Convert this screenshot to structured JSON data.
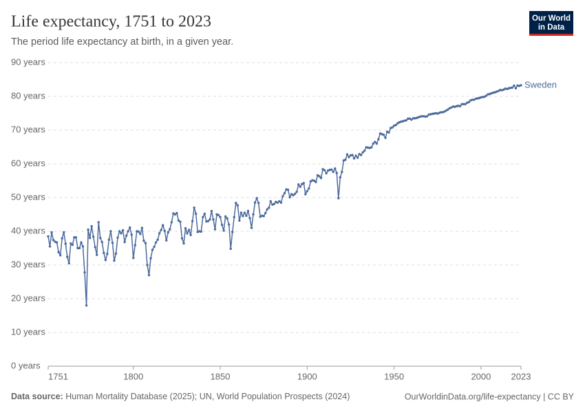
{
  "chart_data": {
    "type": "line",
    "title": "Life expectancy, 1751 to 2023",
    "subtitle": "The period life expectancy at birth, in a given year.",
    "logo": [
      "Our World",
      "in Data"
    ],
    "source_label": "Data source:",
    "source": "Human Mortality Database (2025); UN, World Population Prospects (2024)",
    "credit": "OurWorldinData.org/life-expectancy | CC BY",
    "xlim": [
      1751,
      2023
    ],
    "xticks": [
      1751,
      1800,
      1850,
      1900,
      1950,
      2000,
      2023
    ],
    "ylim": [
      0,
      90
    ],
    "yticks": [
      {
        "value": 0,
        "label": "0 years"
      },
      {
        "value": 10,
        "label": "10 years"
      },
      {
        "value": 20,
        "label": "20 years"
      },
      {
        "value": 30,
        "label": "30 years"
      },
      {
        "value": 40,
        "label": "40 years"
      },
      {
        "value": 50,
        "label": "50 years"
      },
      {
        "value": 60,
        "label": "60 years"
      },
      {
        "value": 70,
        "label": "70 years"
      },
      {
        "value": 80,
        "label": "80 years"
      },
      {
        "value": 90,
        "label": "90 years"
      }
    ],
    "grid": true,
    "x": [
      1751,
      1752,
      1753,
      1754,
      1755,
      1756,
      1757,
      1758,
      1759,
      1760,
      1761,
      1762,
      1763,
      1764,
      1765,
      1766,
      1767,
      1768,
      1769,
      1770,
      1771,
      1772,
      1773,
      1774,
      1775,
      1776,
      1777,
      1778,
      1779,
      1780,
      1781,
      1782,
      1783,
      1784,
      1785,
      1786,
      1787,
      1788,
      1789,
      1790,
      1791,
      1792,
      1793,
      1794,
      1795,
      1796,
      1797,
      1798,
      1799,
      1800,
      1801,
      1802,
      1803,
      1804,
      1805,
      1806,
      1807,
      1808,
      1809,
      1810,
      1811,
      1812,
      1813,
      1814,
      1815,
      1816,
      1817,
      1818,
      1819,
      1820,
      1821,
      1822,
      1823,
      1824,
      1825,
      1826,
      1827,
      1828,
      1829,
      1830,
      1831,
      1832,
      1833,
      1834,
      1835,
      1836,
      1837,
      1838,
      1839,
      1840,
      1841,
      1842,
      1843,
      1844,
      1845,
      1846,
      1847,
      1848,
      1849,
      1850,
      1851,
      1852,
      1853,
      1854,
      1855,
      1856,
      1857,
      1858,
      1859,
      1860,
      1861,
      1862,
      1863,
      1864,
      1865,
      1866,
      1867,
      1868,
      1869,
      1870,
      1871,
      1872,
      1873,
      1874,
      1875,
      1876,
      1877,
      1878,
      1879,
      1880,
      1881,
      1882,
      1883,
      1884,
      1885,
      1886,
      1887,
      1888,
      1889,
      1890,
      1891,
      1892,
      1893,
      1894,
      1895,
      1896,
      1897,
      1898,
      1899,
      1900,
      1901,
      1902,
      1903,
      1904,
      1905,
      1906,
      1907,
      1908,
      1909,
      1910,
      1911,
      1912,
      1913,
      1914,
      1915,
      1916,
      1917,
      1918,
      1919,
      1920,
      1921,
      1922,
      1923,
      1924,
      1925,
      1926,
      1927,
      1928,
      1929,
      1930,
      1931,
      1932,
      1933,
      1934,
      1935,
      1936,
      1937,
      1938,
      1939,
      1940,
      1941,
      1942,
      1943,
      1944,
      1945,
      1946,
      1947,
      1948,
      1949,
      1950,
      1951,
      1952,
      1953,
      1954,
      1955,
      1956,
      1957,
      1958,
      1959,
      1960,
      1961,
      1962,
      1963,
      1964,
      1965,
      1966,
      1967,
      1968,
      1969,
      1970,
      1971,
      1972,
      1973,
      1974,
      1975,
      1976,
      1977,
      1978,
      1979,
      1980,
      1981,
      1982,
      1983,
      1984,
      1985,
      1986,
      1987,
      1988,
      1989,
      1990,
      1991,
      1992,
      1993,
      1994,
      1995,
      1996,
      1997,
      1998,
      1999,
      2000,
      2001,
      2002,
      2003,
      2004,
      2005,
      2006,
      2007,
      2008,
      2009,
      2010,
      2011,
      2012,
      2013,
      2014,
      2015,
      2016,
      2017,
      2018,
      2019,
      2020,
      2021,
      2022,
      2023
    ],
    "series": [
      {
        "name": "Sweden",
        "color": "#4c6a9c",
        "values": [
          38.5,
          35.5,
          39.7,
          37.4,
          36.9,
          36.7,
          33.8,
          32.9,
          37.9,
          39.7,
          36.3,
          32.4,
          30.5,
          36.4,
          36.0,
          38.2,
          38.2,
          35.0,
          35.0,
          36.7,
          35.5,
          27.8,
          18.0,
          40.5,
          38.0,
          41.5,
          38.4,
          35.3,
          33.0,
          42.7,
          38.0,
          36.8,
          33.6,
          31.5,
          33.3,
          37.5,
          40.0,
          36.6,
          31.3,
          33.4,
          38.1,
          40.0,
          39.4,
          40.3,
          36.8,
          38.7,
          40.0,
          41.1,
          39.0,
          32.1,
          35.9,
          40.0,
          39.9,
          39.2,
          41.0,
          37.2,
          36.5,
          30.0,
          27.0,
          32.0,
          34.5,
          35.4,
          36.7,
          37.5,
          39.4,
          40.4,
          41.8,
          40.1,
          37.3,
          39.7,
          40.6,
          42.7,
          45.3,
          45.0,
          45.4,
          43.2,
          42.8,
          37.9,
          36.4,
          40.9,
          39.4,
          40.4,
          38.9,
          43.0,
          47.0,
          45.2,
          39.8,
          40.0,
          39.9,
          44.2,
          45.2,
          42.9,
          43.0,
          43.5,
          46.0,
          43.5,
          40.6,
          45.0,
          44.8,
          44.2,
          41.9,
          40.2,
          44.4,
          43.8,
          42.0,
          34.8,
          39.8,
          44.2,
          48.4,
          47.7,
          43.2,
          45.5,
          44.5,
          45.5,
          44.6,
          46.0,
          43.9,
          41.0,
          45.0,
          48.5,
          49.8,
          48.4,
          44.3,
          44.6,
          44.5,
          45.4,
          46.5,
          47.0,
          48.9,
          47.9,
          48.1,
          48.7,
          48.5,
          48.9,
          48.5,
          50.4,
          51.3,
          52.4,
          52.3,
          50.1,
          51.0,
          50.7,
          51.1,
          51.7,
          53.9,
          53.2,
          54.0,
          54.3,
          51.0,
          51.9,
          52.7,
          54.8,
          55.1,
          55.0,
          54.6,
          56.6,
          56.3,
          55.8,
          58.4,
          58.1,
          57.2,
          58.0,
          58.2,
          58.3,
          57.6,
          58.6,
          57.3,
          49.8,
          56.0,
          57.6,
          61.0,
          61.2,
          62.8,
          62.0,
          62.5,
          62.6,
          61.6,
          62.4,
          61.8,
          62.9,
          62.6,
          63.4,
          63.9,
          64.9,
          64.8,
          64.7,
          64.9,
          66.0,
          66.5,
          66.0,
          67.3,
          69.0,
          68.8,
          68.6,
          67.7,
          69.5,
          69.3,
          70.6,
          70.8,
          71.3,
          71.5,
          72.0,
          72.3,
          72.5,
          72.6,
          72.8,
          72.9,
          73.4,
          73.4,
          73.1,
          73.5,
          73.5,
          73.6,
          73.8,
          74.0,
          74.1,
          74.1,
          74.0,
          74.1,
          74.6,
          74.7,
          74.8,
          74.9,
          75.0,
          74.9,
          75.1,
          75.3,
          75.3,
          75.5,
          75.8,
          76.1,
          76.5,
          76.7,
          77.0,
          76.9,
          77.1,
          77.2,
          77.1,
          77.7,
          77.7,
          77.7,
          78.1,
          78.3,
          78.8,
          79.0,
          79.0,
          79.3,
          79.4,
          79.5,
          79.7,
          79.8,
          79.9,
          80.2,
          80.6,
          80.7,
          80.9,
          81.1,
          81.2,
          81.4,
          81.6,
          81.9,
          81.8,
          82.0,
          82.3,
          82.2,
          82.4,
          82.5,
          82.6,
          83.2,
          82.4,
          83.2,
          83.1,
          83.3
        ]
      }
    ]
  }
}
